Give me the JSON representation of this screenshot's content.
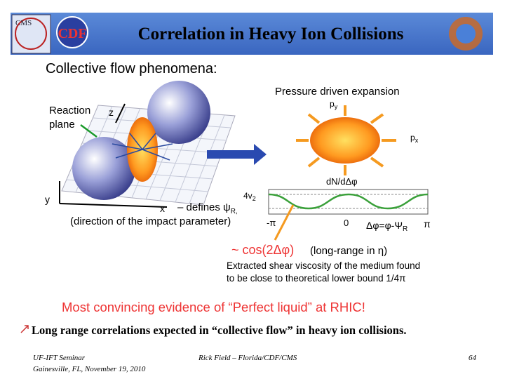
{
  "header": {
    "title": "Correlation in Heavy Ion Collisions",
    "logo_left": "CMS",
    "logo_center": "CDF"
  },
  "figure": {
    "heading": "Collective flow phenomena:",
    "reaction_plane": [
      "Reaction",
      "plane"
    ],
    "axis_z": "z",
    "axis_y": "y",
    "axis_x": "x",
    "defines": {
      "text": "– defines ψ",
      "sub": "R,"
    },
    "impact": "(direction of the impact parameter)",
    "expansion": "Pressure driven expansion",
    "py": {
      "text": "p",
      "sub": "y"
    },
    "px": {
      "text": "p",
      "sub": "x"
    },
    "dn": "dN/dΔφ",
    "v2": {
      "text": "4v",
      "sub": "2"
    },
    "tick_minus_pi": "-π",
    "tick_zero": "0",
    "tick_pi": "π",
    "dphi": {
      "text": "Δφ=φ-Ψ",
      "sub": "R"
    },
    "cos": "~ cos(2Δφ)",
    "long_range": "(long-range in η)",
    "viscosity": [
      "Extracted shear viscosity of the medium found",
      "to be close to theoretical lower bound 1/4π"
    ],
    "evidence": "Most convincing evidence of “Perfect liquid” at RHIC!"
  },
  "bullet": "Long range correlations expected in “collective flow” in heavy ion collisions.",
  "footer": {
    "left": [
      "UF-IFT Seminar",
      "Gainesville, FL,  November 19, 2010"
    ],
    "center": "Rick Field – Florida/CDF/CMS",
    "page": "64"
  }
}
